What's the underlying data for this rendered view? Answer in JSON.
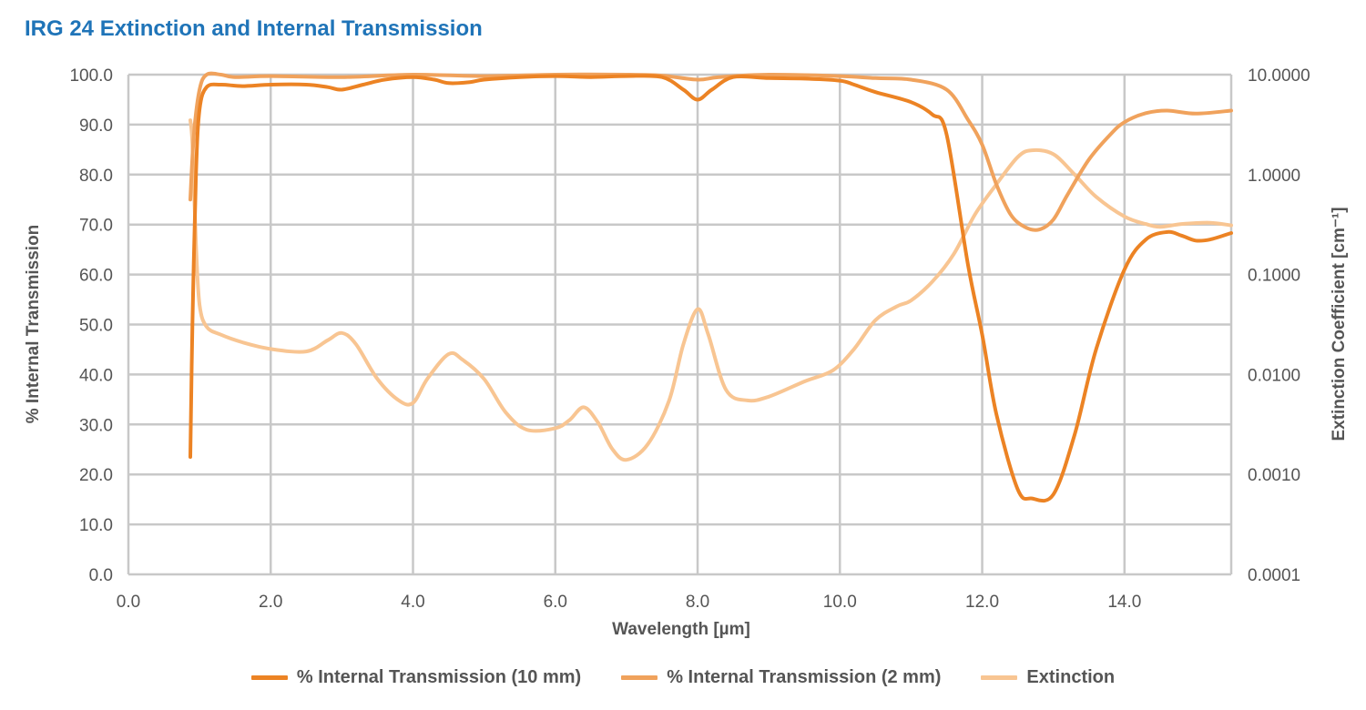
{
  "chart_data": {
    "type": "line",
    "title": "IRG 24 Extinction and Internal Transmission",
    "xlabel": "Wavelength [µm]",
    "ylabel": "% Internal Transmission",
    "y2label": "Extinction Coefficient [cm⁻¹]",
    "xlim": [
      0,
      15.5
    ],
    "ylim": [
      0,
      100
    ],
    "y2lim": [
      0.0001,
      10
    ],
    "y2scale": "log",
    "grid": true,
    "legend_position": "bottom",
    "x_ticks": [
      "0.0",
      "2.0",
      "4.0",
      "6.0",
      "8.0",
      "10.0",
      "12.0",
      "14.0"
    ],
    "y_ticks": [
      "0.0",
      "10.0",
      "20.0",
      "30.0",
      "40.0",
      "50.0",
      "60.0",
      "70.0",
      "80.0",
      "90.0",
      "100.0"
    ],
    "y2_ticks": [
      "0.0001",
      "0.0010",
      "0.0100",
      "0.1000",
      "1.0000",
      "10.0000"
    ],
    "series": [
      {
        "name": "% Internal Transmission (10 mm)",
        "axis": "left",
        "color": "#ec8324",
        "points": [
          [
            0.87,
            23.5
          ],
          [
            0.9,
            50
          ],
          [
            0.95,
            80
          ],
          [
            1.0,
            93
          ],
          [
            1.1,
            97.5
          ],
          [
            1.3,
            98
          ],
          [
            1.6,
            97.7
          ],
          [
            2.0,
            98
          ],
          [
            2.5,
            98
          ],
          [
            2.8,
            97.5
          ],
          [
            3.0,
            97
          ],
          [
            3.3,
            98
          ],
          [
            3.6,
            99
          ],
          [
            4.0,
            99.5
          ],
          [
            4.3,
            99
          ],
          [
            4.5,
            98.3
          ],
          [
            4.8,
            98.5
          ],
          [
            5.0,
            99
          ],
          [
            5.5,
            99.5
          ],
          [
            6.0,
            99.7
          ],
          [
            6.5,
            99.5
          ],
          [
            7.0,
            99.7
          ],
          [
            7.5,
            99.5
          ],
          [
            7.8,
            97
          ],
          [
            8.0,
            95
          ],
          [
            8.2,
            97
          ],
          [
            8.5,
            99.5
          ],
          [
            9.0,
            99.3
          ],
          [
            9.5,
            99.2
          ],
          [
            10.0,
            98.8
          ],
          [
            10.2,
            98
          ],
          [
            10.5,
            96.5
          ],
          [
            11.0,
            94.5
          ],
          [
            11.3,
            92
          ],
          [
            11.5,
            88
          ],
          [
            11.8,
            62
          ],
          [
            12.0,
            48
          ],
          [
            12.2,
            32
          ],
          [
            12.5,
            17
          ],
          [
            12.7,
            15.2
          ],
          [
            13.0,
            16
          ],
          [
            13.3,
            28
          ],
          [
            13.6,
            45
          ],
          [
            14.0,
            61
          ],
          [
            14.3,
            67
          ],
          [
            14.6,
            68.5
          ],
          [
            14.8,
            67.8
          ],
          [
            15.0,
            66.8
          ],
          [
            15.2,
            67
          ],
          [
            15.5,
            68.3
          ]
        ]
      },
      {
        "name": "% Internal Transmission (2 mm)",
        "axis": "left",
        "color": "#f0a25c",
        "points": [
          [
            0.87,
            75
          ],
          [
            0.92,
            88
          ],
          [
            1.0,
            97
          ],
          [
            1.1,
            100
          ],
          [
            1.3,
            100
          ],
          [
            1.5,
            99.5
          ],
          [
            2.0,
            99.7
          ],
          [
            3.0,
            99.5
          ],
          [
            4.0,
            100
          ],
          [
            5.0,
            99.7
          ],
          [
            6.0,
            100
          ],
          [
            7.0,
            100
          ],
          [
            7.5,
            99.8
          ],
          [
            8.0,
            99
          ],
          [
            8.3,
            99.5
          ],
          [
            9.0,
            100
          ],
          [
            10.0,
            99.7
          ],
          [
            10.5,
            99.3
          ],
          [
            11.0,
            99
          ],
          [
            11.5,
            97
          ],
          [
            11.8,
            91
          ],
          [
            12.0,
            86
          ],
          [
            12.2,
            78
          ],
          [
            12.4,
            72
          ],
          [
            12.6,
            69.5
          ],
          [
            12.8,
            69
          ],
          [
            13.0,
            71
          ],
          [
            13.2,
            76
          ],
          [
            13.5,
            83
          ],
          [
            13.8,
            88
          ],
          [
            14.0,
            90.5
          ],
          [
            14.3,
            92.3
          ],
          [
            14.6,
            92.8
          ],
          [
            15.0,
            92.2
          ],
          [
            15.5,
            92.8
          ]
        ]
      },
      {
        "name": "Extinction",
        "axis": "right",
        "color": "#f8c592",
        "points": [
          [
            0.87,
            3.5
          ],
          [
            0.9,
            2.0
          ],
          [
            0.95,
            0.2
          ],
          [
            1.0,
            0.05
          ],
          [
            1.1,
            0.03
          ],
          [
            1.3,
            0.025
          ],
          [
            1.6,
            0.021
          ],
          [
            2.0,
            0.018
          ],
          [
            2.5,
            0.017
          ],
          [
            2.8,
            0.022
          ],
          [
            3.0,
            0.026
          ],
          [
            3.2,
            0.02
          ],
          [
            3.5,
            0.009
          ],
          [
            3.8,
            0.0055
          ],
          [
            4.0,
            0.0052
          ],
          [
            4.2,
            0.009
          ],
          [
            4.5,
            0.016
          ],
          [
            4.7,
            0.014
          ],
          [
            5.0,
            0.009
          ],
          [
            5.3,
            0.0042
          ],
          [
            5.6,
            0.0028
          ],
          [
            6.0,
            0.0029
          ],
          [
            6.2,
            0.0035
          ],
          [
            6.4,
            0.0047
          ],
          [
            6.6,
            0.0033
          ],
          [
            6.8,
            0.0018
          ],
          [
            7.0,
            0.0014
          ],
          [
            7.3,
            0.002
          ],
          [
            7.6,
            0.0055
          ],
          [
            7.8,
            0.02
          ],
          [
            8.0,
            0.045
          ],
          [
            8.15,
            0.025
          ],
          [
            8.4,
            0.007
          ],
          [
            8.7,
            0.0055
          ],
          [
            9.0,
            0.006
          ],
          [
            9.5,
            0.0085
          ],
          [
            9.9,
            0.011
          ],
          [
            10.2,
            0.018
          ],
          [
            10.5,
            0.035
          ],
          [
            10.8,
            0.048
          ],
          [
            11.0,
            0.055
          ],
          [
            11.3,
            0.085
          ],
          [
            11.6,
            0.16
          ],
          [
            11.9,
            0.4
          ],
          [
            12.2,
            0.8
          ],
          [
            12.5,
            1.5
          ],
          [
            12.7,
            1.75
          ],
          [
            13.0,
            1.6
          ],
          [
            13.3,
            1.0
          ],
          [
            13.6,
            0.6
          ],
          [
            14.0,
            0.38
          ],
          [
            14.3,
            0.32
          ],
          [
            14.5,
            0.3
          ],
          [
            14.8,
            0.32
          ],
          [
            15.2,
            0.33
          ],
          [
            15.5,
            0.31
          ]
        ]
      }
    ]
  }
}
